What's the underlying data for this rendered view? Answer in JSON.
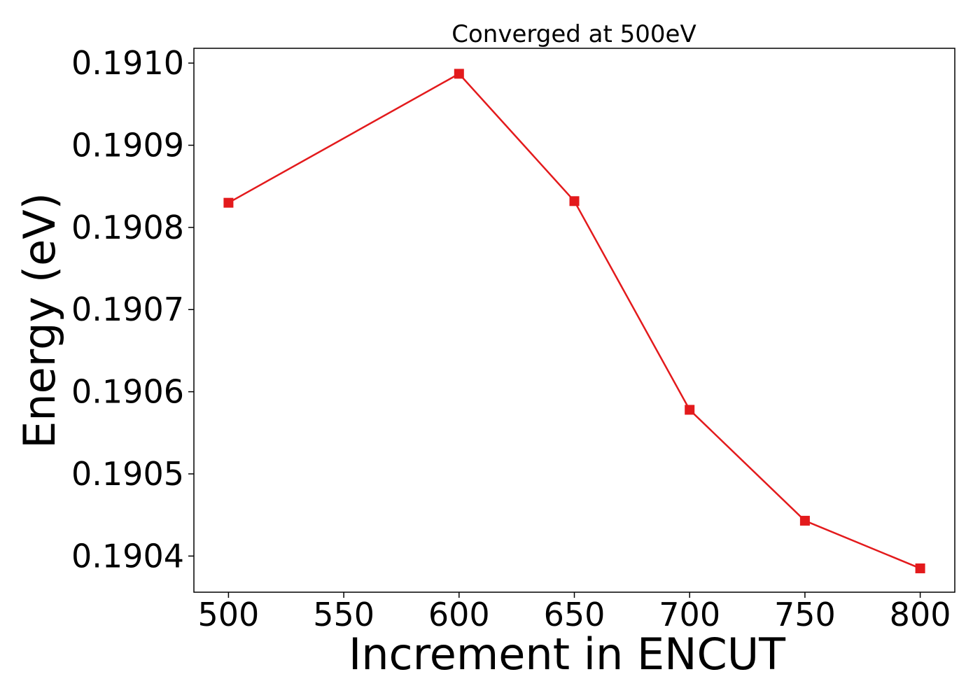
{
  "chart_data": {
    "type": "line",
    "title": "Converged at 500eV",
    "xlabel": "Increment in ENCUT",
    "ylabel": "Energy (eV)",
    "x": [
      500,
      600,
      650,
      700,
      750,
      800
    ],
    "series": [
      {
        "values": [
          0.19083,
          0.190987,
          0.190832,
          0.190578,
          0.190443,
          0.190385
        ],
        "color": "#e31a1c",
        "marker": "square"
      }
    ],
    "xlim": [
      485,
      815
    ],
    "ylim": [
      0.190356,
      0.191018
    ],
    "xticks": [
      500,
      550,
      600,
      650,
      700,
      750,
      800
    ],
    "xtick_labels": [
      "500",
      "550",
      "600",
      "650",
      "700",
      "750",
      "800"
    ],
    "yticks": [
      0.1904,
      0.1905,
      0.1906,
      0.1907,
      0.1908,
      0.1909,
      0.191
    ],
    "ytick_labels": [
      "0.1904",
      "0.1905",
      "0.1906",
      "0.1907",
      "0.1908",
      "0.1909",
      "0.1910"
    ],
    "grid": false,
    "legend": false
  }
}
